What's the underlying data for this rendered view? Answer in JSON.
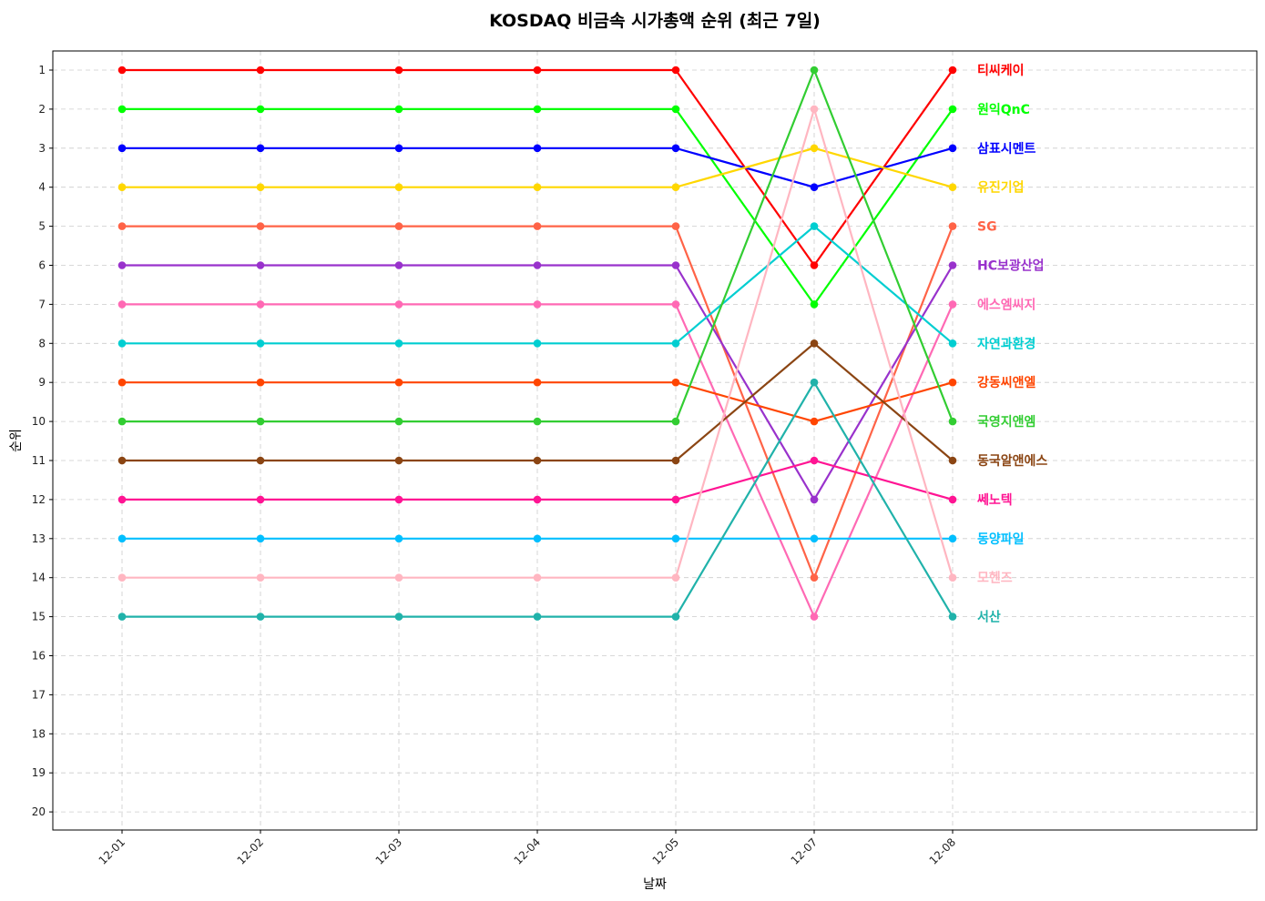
{
  "chart_data": {
    "type": "line",
    "title": "KOSDAQ 비금속 시가총액 순위 (최근 7일)",
    "xlabel": "날짜",
    "ylabel": "순위",
    "categories": [
      "12-01",
      "12-02",
      "12-03",
      "12-04",
      "12-05",
      "12-07",
      "12-08"
    ],
    "yticks": [
      1,
      2,
      3,
      4,
      5,
      6,
      7,
      8,
      9,
      10,
      11,
      12,
      13,
      14,
      15,
      16,
      17,
      18,
      19,
      20
    ],
    "ylim": [
      20.5,
      0.5
    ],
    "y_inverted": true,
    "grid": true,
    "legend": "labels at right end of each line",
    "series": [
      {
        "name": "티씨케이",
        "color": "#ff0000",
        "values": [
          1,
          1,
          1,
          1,
          1,
          6,
          1
        ]
      },
      {
        "name": "원익QnC",
        "color": "#00ff00",
        "values": [
          2,
          2,
          2,
          2,
          2,
          7,
          2
        ]
      },
      {
        "name": "삼표시멘트",
        "color": "#0000ff",
        "values": [
          3,
          3,
          3,
          3,
          3,
          4,
          3
        ]
      },
      {
        "name": "유진기업",
        "color": "#ffd700",
        "values": [
          4,
          4,
          4,
          4,
          4,
          3,
          4
        ]
      },
      {
        "name": "SG",
        "color": "#ff6347",
        "values": [
          5,
          5,
          5,
          5,
          5,
          14,
          5
        ]
      },
      {
        "name": "HC보광산업",
        "color": "#9932cc",
        "values": [
          6,
          6,
          6,
          6,
          6,
          12,
          6
        ]
      },
      {
        "name": "에스엠씨지",
        "color": "#ff69b4",
        "values": [
          7,
          7,
          7,
          7,
          7,
          15,
          7
        ]
      },
      {
        "name": "자연과환경",
        "color": "#00ced1",
        "values": [
          8,
          8,
          8,
          8,
          8,
          5,
          8
        ]
      },
      {
        "name": "강동씨앤엘",
        "color": "#ff4500",
        "values": [
          9,
          9,
          9,
          9,
          9,
          10,
          9
        ]
      },
      {
        "name": "국영지앤엠",
        "color": "#32cd32",
        "values": [
          10,
          10,
          10,
          10,
          10,
          1,
          10
        ]
      },
      {
        "name": "동국알앤에스",
        "color": "#8b4513",
        "values": [
          11,
          11,
          11,
          11,
          11,
          8,
          11
        ]
      },
      {
        "name": "쎄노텍",
        "color": "#ff1493",
        "values": [
          12,
          12,
          12,
          12,
          12,
          11,
          12
        ]
      },
      {
        "name": "동양파일",
        "color": "#00bfff",
        "values": [
          13,
          13,
          13,
          13,
          13,
          13,
          13
        ]
      },
      {
        "name": "모헨즈",
        "color": "#ffb6c1",
        "values": [
          14,
          14,
          14,
          14,
          14,
          2,
          14
        ]
      },
      {
        "name": "서산",
        "color": "#20b2aa",
        "values": [
          15,
          15,
          15,
          15,
          15,
          9,
          15
        ]
      }
    ]
  }
}
